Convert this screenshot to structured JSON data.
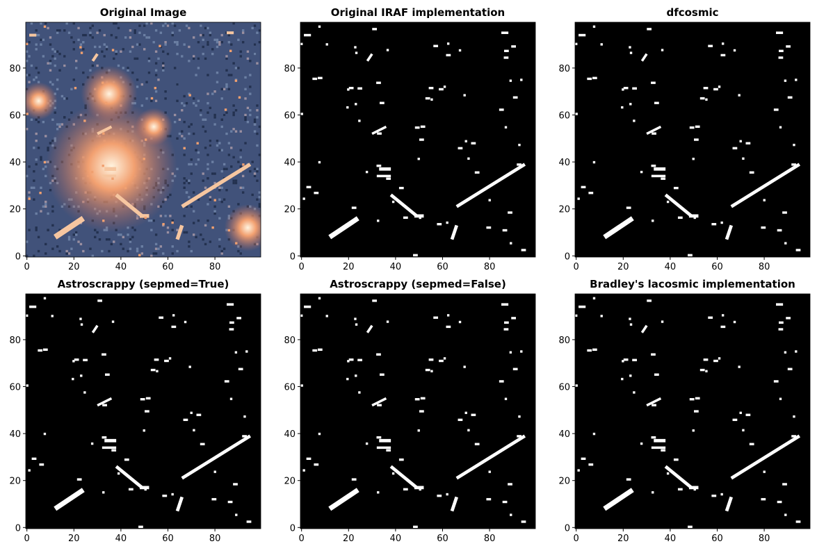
{
  "chart_data": [
    {
      "type": "image",
      "title": "Original Image",
      "xlim": [
        -0.5,
        99.5
      ],
      "ylim": [
        -0.5,
        99.5
      ],
      "xticks": [
        0,
        20,
        40,
        60,
        80
      ],
      "yticks": [
        0,
        20,
        40,
        60,
        80
      ]
    },
    {
      "type": "mask",
      "title": "Original IRAF implementation",
      "xlim": [
        -0.5,
        99.5
      ],
      "ylim": [
        -0.5,
        99.5
      ],
      "xticks": [
        0,
        20,
        40,
        60,
        80
      ],
      "yticks": [
        0,
        20,
        40,
        60,
        80
      ]
    },
    {
      "type": "mask",
      "title": "dfcosmic",
      "xlim": [
        -0.5,
        99.5
      ],
      "ylim": [
        -0.5,
        99.5
      ],
      "xticks": [
        0,
        20,
        40,
        60,
        80
      ],
      "yticks": [
        0,
        20,
        40,
        60,
        80
      ]
    },
    {
      "type": "mask",
      "title": "Astroscrappy (sepmed=True)",
      "xlim": [
        -0.5,
        99.5
      ],
      "ylim": [
        -0.5,
        99.5
      ],
      "xticks": [
        0,
        20,
        40,
        60,
        80
      ],
      "yticks": [
        0,
        20,
        40,
        60,
        80
      ]
    },
    {
      "type": "mask",
      "title": "Astroscrappy (sepmed=False)",
      "xlim": [
        -0.5,
        99.5
      ],
      "ylim": [
        -0.5,
        99.5
      ],
      "xticks": [
        0,
        20,
        40,
        60,
        80
      ],
      "yticks": [
        0,
        20,
        40,
        60,
        80
      ]
    },
    {
      "type": "mask",
      "title": "Bradley's lacosmic implementation",
      "xlim": [
        -0.5,
        99.5
      ],
      "ylim": [
        -0.5,
        99.5
      ],
      "xticks": [
        0,
        20,
        40,
        60,
        80
      ],
      "yticks": [
        0,
        20,
        40,
        60,
        80
      ]
    }
  ]
}
